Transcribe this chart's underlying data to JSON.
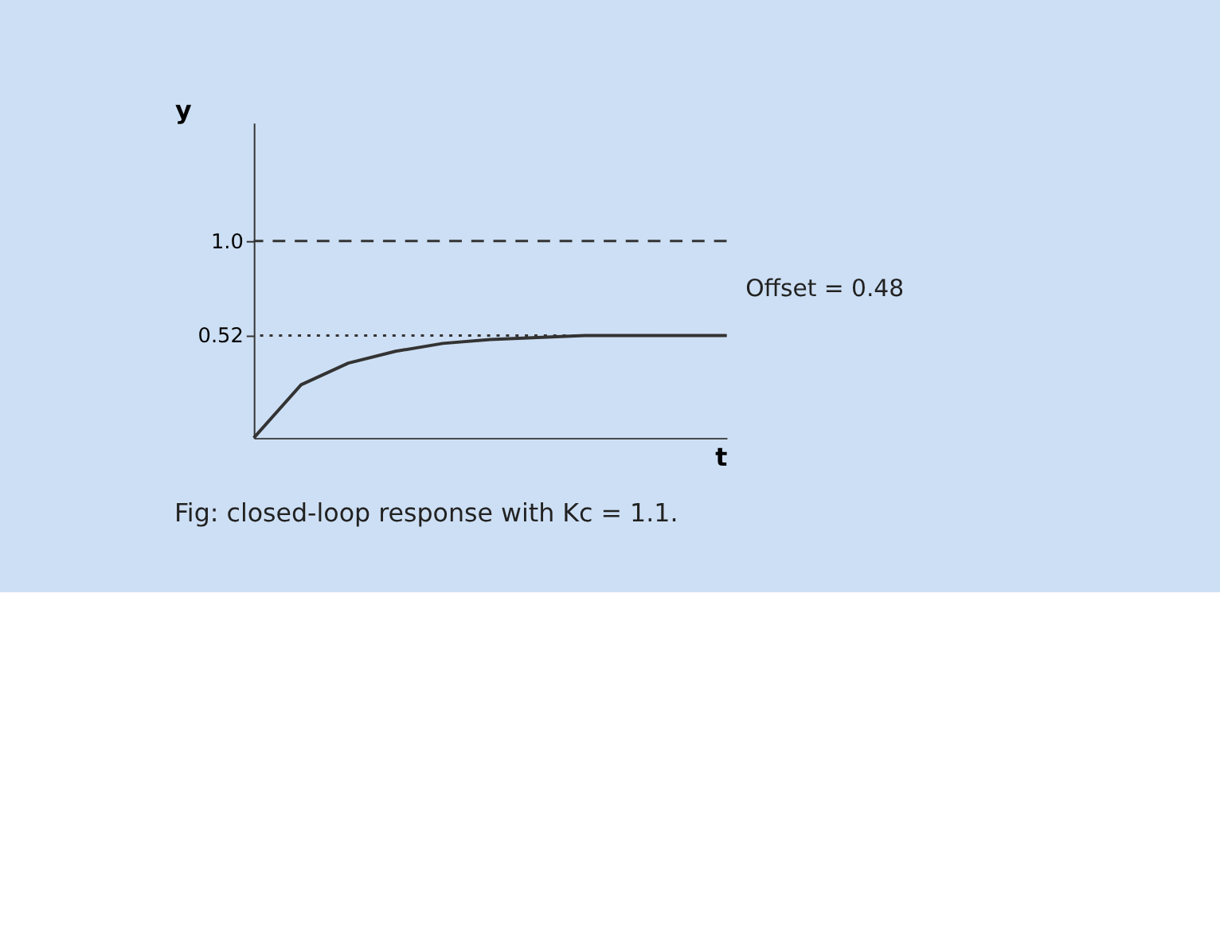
{
  "chart_data": {
    "type": "line",
    "title": "Fig: closed-loop response with Kc = 1.1.",
    "xlabel": "t",
    "ylabel": "y",
    "categories": [
      null,
      null,
      null,
      null,
      null,
      null,
      null,
      null,
      null,
      null,
      null
    ],
    "series": [
      {
        "color": "#333333",
        "values": [
          0,
          0.27,
          0.38,
          0.44,
          0.48,
          0.5,
          0.51,
          0.52,
          0.52,
          0.52,
          0.52
        ]
      }
    ],
    "ylim": [
      0,
      1.6
    ],
    "yticks": [
      0.52,
      {
        "value": 1.0,
        "label": "1.0"
      }
    ],
    "ref_lines": [
      {
        "axis": "y",
        "value": 1.0,
        "label": null,
        "line_style": "dashed",
        "color": "#333333"
      },
      {
        "axis": "y",
        "value": 0.52,
        "label": null,
        "line_style": "dotted",
        "color": "#333333"
      }
    ],
    "annotations": [
      "Offset = 0.48"
    ],
    "tick_labels": "y",
    "grid": false,
    "marker": "none",
    "line_style": "solid"
  }
}
